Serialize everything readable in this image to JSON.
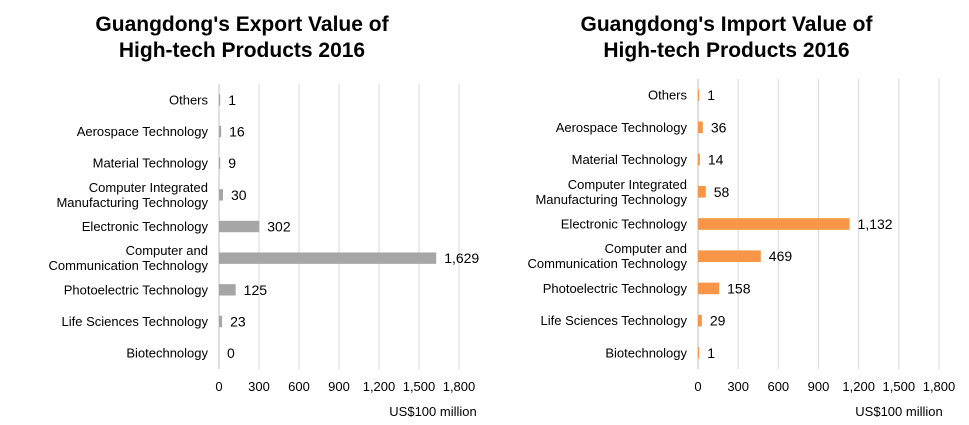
{
  "chart_data": [
    {
      "type": "bar",
      "orientation": "horizontal",
      "title_lines": [
        "Guangdong's Export Value of",
        "High-tech Products 2016"
      ],
      "categories": [
        [
          "Others"
        ],
        [
          "Aerospace Technology"
        ],
        [
          "Material Technology"
        ],
        [
          "Computer  Integrated",
          "Manufacturing Technology"
        ],
        [
          "Electronic Technology"
        ],
        [
          "Computer and",
          "Communication Technology"
        ],
        [
          "Photoelectric Technology"
        ],
        [
          "Life Sciences Technology"
        ],
        [
          "Biotechnology"
        ]
      ],
      "values": [
        1,
        16,
        9,
        30,
        302,
        1629,
        125,
        23,
        0
      ],
      "value_labels": [
        "1",
        "16",
        "9",
        "30",
        "302",
        "1,629",
        "125",
        "23",
        "0"
      ],
      "xticks": [
        "0",
        "300",
        "600",
        "900",
        "1,200",
        "1,500",
        "1,800"
      ],
      "xlim": [
        0,
        1800
      ],
      "xlabel": "US$100 million",
      "color": "#a6a6a6",
      "grid": true
    },
    {
      "type": "bar",
      "orientation": "horizontal",
      "title_lines": [
        "Guangdong's Import Value of",
        "High-tech Products 2016"
      ],
      "categories": [
        [
          "Others"
        ],
        [
          "Aerospace Technology"
        ],
        [
          "Material Technology"
        ],
        [
          "Computer Integrated",
          "Manufacturing Technology"
        ],
        [
          "Electronic Technology"
        ],
        [
          "Computer and",
          "Communication Technology"
        ],
        [
          "Photoelectric Technology"
        ],
        [
          "Life Sciences Technology"
        ],
        [
          "Biotechnology"
        ]
      ],
      "values": [
        1,
        36,
        14,
        58,
        1132,
        469,
        158,
        29,
        1
      ],
      "value_labels": [
        "1",
        "36",
        "14",
        "58",
        "1,132",
        "469",
        "158",
        "29",
        "1"
      ],
      "xticks": [
        "0",
        "300",
        "600",
        "900",
        "1,200",
        "1,500",
        "1,800"
      ],
      "xlim": [
        0,
        1800
      ],
      "xlabel": "US$100 million",
      "color": "#f79646",
      "grid": true
    }
  ]
}
